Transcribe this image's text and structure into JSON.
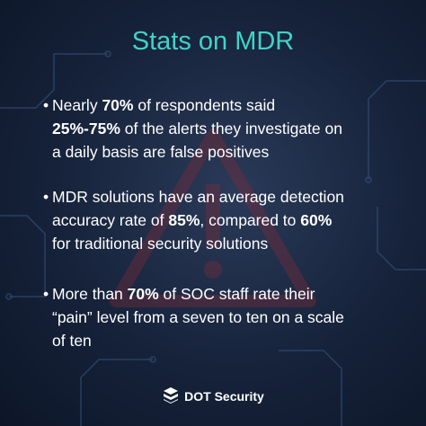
{
  "title": "Stats on MDR",
  "bullets": [
    {
      "lines": [
        [
          {
            "text": "Nearly "
          },
          {
            "text": "70%",
            "bold": true
          },
          {
            "text": " of respondents said"
          }
        ],
        [
          {
            "text": "25%-75%",
            "bold": true
          },
          {
            "text": " of the alerts they investigate on"
          }
        ],
        [
          {
            "text": "a daily basis are false positives"
          }
        ]
      ]
    },
    {
      "lines": [
        [
          {
            "text": "MDR solutions have an average detection"
          }
        ],
        [
          {
            "text": "accuracy rate of "
          },
          {
            "text": "85%",
            "bold": true
          },
          {
            "text": ", compared to "
          },
          {
            "text": "60%",
            "bold": true
          }
        ],
        [
          {
            "text": "for traditional security solutions"
          }
        ]
      ]
    },
    {
      "lines": [
        [
          {
            "text": "More than "
          },
          {
            "text": "70%",
            "bold": true
          },
          {
            "text": " of SOC staff rate their"
          }
        ],
        [
          {
            "text": "“pain” level from a seven to ten on a scale"
          }
        ],
        [
          {
            "text": "of ten"
          }
        ]
      ]
    }
  ],
  "logo": "DOT Security"
}
